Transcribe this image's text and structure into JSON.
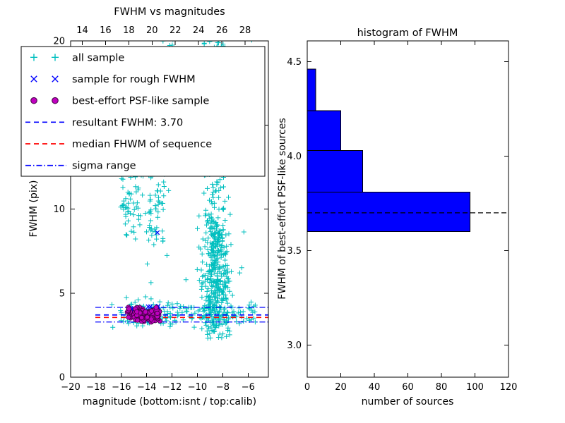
{
  "chart_data": [
    {
      "id": "fwhm_vs_magnitudes",
      "type": "scatter",
      "title": "FWHM vs magnitudes",
      "xlabel": "magnitude (bottom:isnt / top:calib)",
      "ylabel": "FWHM (pix)",
      "xlim": [
        -20,
        -4.4
      ],
      "ylim": [
        0,
        20
      ],
      "xticks": [
        -20,
        -18,
        -16,
        -14,
        -12,
        -10,
        -8,
        -6
      ],
      "xtick_labels": [
        "−20",
        "−18",
        "−16",
        "−14",
        "−12",
        "−10",
        "−8",
        "−6"
      ],
      "yticks": [
        0,
        5,
        10,
        15,
        20
      ],
      "ytick_labels": [
        "0",
        "5",
        "10",
        "15",
        "20"
      ],
      "top_axis": {
        "lim": [
          13,
          30
        ],
        "ticks": [
          14,
          16,
          18,
          20,
          22,
          24,
          26,
          28
        ],
        "tick_labels": [
          "14",
          "16",
          "18",
          "20",
          "22",
          "24",
          "26",
          "28"
        ]
      },
      "series": [
        {
          "name": "all sample",
          "marker": "+",
          "color": "#00bfbf",
          "clusters": [
            {
              "n": 430,
              "x": {
                "dist": "gauss",
                "mu": -8.55,
                "sigma": 0.5,
                "min": -10.3,
                "max": -7.1
              },
              "y": {
                "dist": "gauss",
                "mu": 6.3,
                "sigma": 2.4,
                "min": 2.3,
                "max": 12.5
              }
            },
            {
              "n": 70,
              "x": {
                "dist": "gauss",
                "mu": -9.0,
                "sigma": 0.35,
                "min": -10.0,
                "max": -8.0
              },
              "y": {
                "dist": "gauss",
                "mu": 14.5,
                "sigma": 2.2,
                "min": 12.0,
                "max": 19.3
              }
            },
            {
              "n": 25,
              "x": {
                "dist": "gauss",
                "mu": -8.8,
                "sigma": 0.5,
                "min": -10.0,
                "max": -7.5
              },
              "y": {
                "dist": "uniform",
                "min": 19.3,
                "max": 20.35
              }
            },
            {
              "n": 100,
              "x": {
                "dist": "uniform",
                "min": -16.1,
                "max": -12.6
              },
              "y": {
                "dist": "gauss",
                "mu": 10.2,
                "sigma": 1.1,
                "min": 8.0,
                "max": 12.4
              }
            },
            {
              "n": 170,
              "x": {
                "dist": "uniform",
                "min": -16.1,
                "max": -5.4
              },
              "y": {
                "dist": "gauss",
                "mu": 3.85,
                "sigma": 0.42,
                "min": 2.9,
                "max": 5.0
              }
            },
            {
              "n": 60,
              "x": {
                "dist": "uniform",
                "min": -17.3,
                "max": -5.3
              },
              "y": {
                "dist": "uniform",
                "min": 2.0,
                "max": 20.3
              }
            },
            {
              "n": 6,
              "x": {
                "dist": "uniform",
                "min": -12.8,
                "max": -11.6
              },
              "y": {
                "dist": "uniform",
                "min": 19.2,
                "max": 20.3
              }
            }
          ]
        },
        {
          "name": "sample for rough FWHM",
          "marker": "x",
          "color": "#0000ff",
          "clusters": [
            {
              "n": 20,
              "x": {
                "dist": "uniform",
                "min": -15.4,
                "max": -13.0
              },
              "y": {
                "dist": "gauss",
                "mu": 3.95,
                "sigma": 0.18,
                "min": 3.55,
                "max": 4.35
              }
            }
          ],
          "points": [
            [
              -13.15,
              8.6
            ]
          ]
        },
        {
          "name": "best-effort PSF-like sample",
          "marker": "o",
          "color": "#bf00bf",
          "edge": "#400040",
          "clusters": [
            {
              "n": 110,
              "x": {
                "dist": "uniform",
                "min": -15.55,
                "max": -12.9
              },
              "y": {
                "dist": "gauss",
                "mu": 3.75,
                "sigma": 0.22,
                "min": 3.25,
                "max": 4.2
              }
            }
          ]
        }
      ],
      "lines": [
        {
          "name": "resultant FWHM: 3.70",
          "y": 3.7,
          "style": "dashed",
          "color": "#0000ff",
          "x_start": -18.05
        },
        {
          "name": "median FHWM of sequence",
          "y": 3.55,
          "style": "dashed",
          "color": "#ff0000",
          "x_start": -18.05
        },
        {
          "name": "sigma range upper",
          "y": 4.15,
          "style": "dashdot",
          "color": "#0000ff",
          "x_start": -18.05
        },
        {
          "name": "sigma range lower",
          "y": 3.28,
          "style": "dashdot",
          "color": "#0000ff",
          "x_start": -18.05
        }
      ],
      "legend": [
        {
          "label": "all sample",
          "kind": "marker",
          "marker": "+",
          "color": "#00bfbf"
        },
        {
          "label": "sample for rough FWHM",
          "kind": "marker",
          "marker": "x",
          "color": "#0000ff"
        },
        {
          "label": "best-effort PSF-like sample",
          "kind": "marker",
          "marker": "o",
          "color": "#bf00bf"
        },
        {
          "label": "resultant FWHM: 3.70",
          "kind": "line",
          "style": "dashed",
          "color": "#0000ff"
        },
        {
          "label": "median FHWM of sequence",
          "kind": "line",
          "style": "dashed",
          "color": "#ff0000"
        },
        {
          "label": "sigma range",
          "kind": "line",
          "style": "dashdot",
          "color": "#0000ff"
        }
      ]
    },
    {
      "id": "fwhm_histogram",
      "type": "bar",
      "orientation": "horizontal",
      "title": "histogram of FWHM",
      "xlabel": "number of sources",
      "ylabel": "FWHM of best-effort PSF-like sources",
      "xlim": [
        0,
        120
      ],
      "ylim": [
        2.83,
        4.61
      ],
      "xticks": [
        0,
        20,
        40,
        60,
        80,
        100,
        120
      ],
      "xtick_labels": [
        "0",
        "20",
        "40",
        "60",
        "80",
        "100",
        "120"
      ],
      "yticks": [
        3.0,
        3.5,
        4.0,
        4.5
      ],
      "ytick_labels": [
        "3.0",
        "3.5",
        "4.0",
        "4.5"
      ],
      "bin_edges": [
        3.6,
        3.81,
        4.03,
        4.24,
        4.46
      ],
      "counts": [
        97,
        33,
        20,
        5
      ],
      "bar_color": "#0000ff",
      "bar_edge": "#000000",
      "dashed_line_y": 3.7,
      "dashed_line_color": "#000000"
    }
  ]
}
